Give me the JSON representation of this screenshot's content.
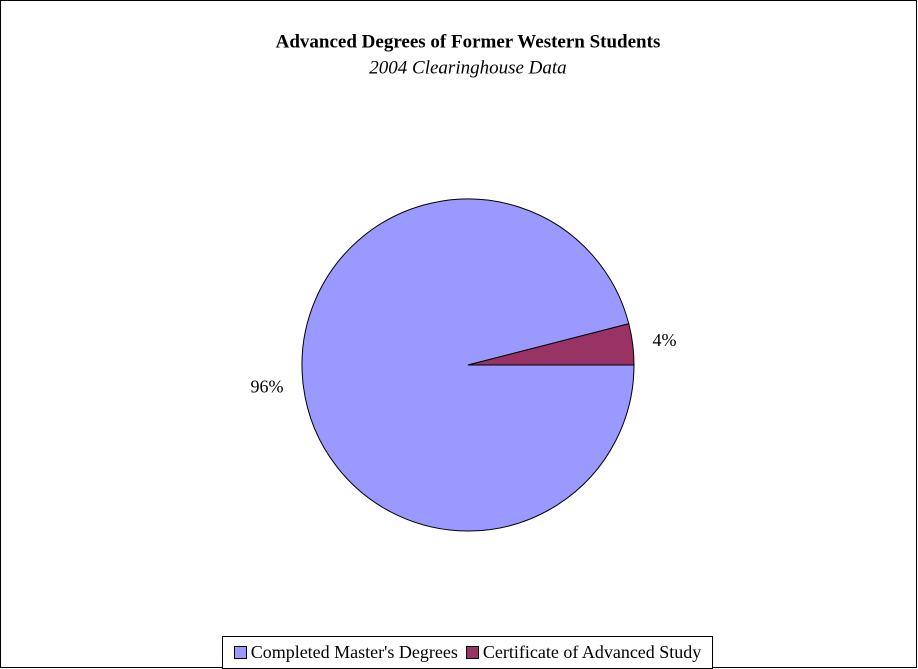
{
  "chart_data": {
    "type": "pie",
    "title": "Advanced Degrees of Former Western Students",
    "subtitle": "2004 Clearinghouse Data",
    "categories": [
      "Completed Master's Degrees",
      "Certificate of Advanced Study"
    ],
    "values": [
      96,
      4
    ],
    "value_labels": [
      "96%",
      "4%"
    ],
    "colors": [
      "#9999ff",
      "#993366"
    ],
    "legend": "bottom"
  }
}
